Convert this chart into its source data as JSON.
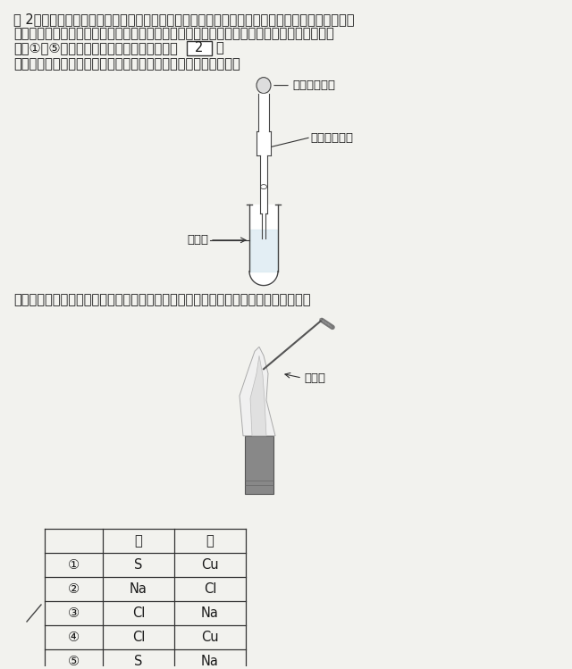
{
  "bg_color": "#f2f2ee",
  "title_line1": "問 2　ある物質に含まれている成分元素を確認するために，その物質の水溶液を用いて，次のア",
  "title_line2": "とイの操作を行った。この操作で確認できる成分元素の組合せとして正しいものはどれか。",
  "title_line3_pre": "下の①～⑤のうちから一つ選べ。解答番号は",
  "answer_box": "2",
  "title_line3_post": "。",
  "section_a_label": "ア",
  "section_a_text": "　水溶液に硝酸銀水溶液を加えたところ，白色沈殿を生じた。",
  "label_pipette": "駒込ピペット",
  "label_solution_a": "硝酸銀水溶液",
  "label_water": "水溶液",
  "section_b_label": "イ",
  "section_b_text": "　水溶液を白金線の先につけて炎色反応を調べたところ，炎の色が黄色になった。",
  "label_wire": "白金線",
  "table_headers": [
    "",
    "ア",
    "イ"
  ],
  "table_rows": [
    [
      "①",
      "S",
      "Cu"
    ],
    [
      "②",
      "Na",
      "Cl"
    ],
    [
      "③",
      "Cl",
      "Na"
    ],
    [
      "④",
      "Cl",
      "Cu"
    ],
    [
      "⑤",
      "S",
      "Na"
    ]
  ],
  "slash_row": 2,
  "font_size_main": 10.5,
  "text_color": "#1a1a1a"
}
